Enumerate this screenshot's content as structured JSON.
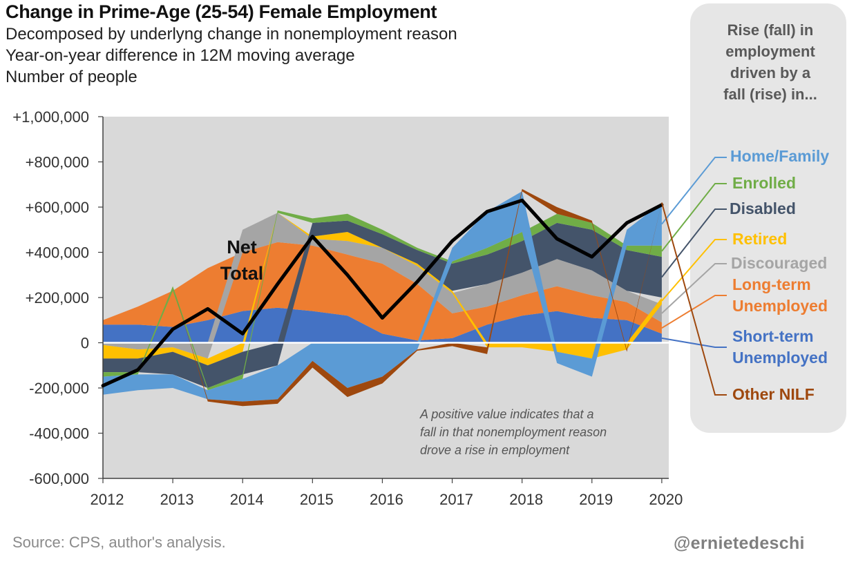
{
  "header": {
    "title": "Change in Prime-Age (25-54) Female Employment",
    "subtitle_lines": [
      "Decomposed by underlyng change in nonemployment reason",
      "Year-on-year difference in 12M moving average",
      "Number of people"
    ]
  },
  "legend_panel": {
    "title_lines": [
      "Rise (fall) in",
      "employment",
      "driven by a",
      "fall (rise) in..."
    ],
    "items": [
      {
        "label": "Home/Family",
        "color": "#5b9bd5"
      },
      {
        "label": "Enrolled",
        "color": "#70ad47"
      },
      {
        "label": "Disabled",
        "color": "#44546a"
      },
      {
        "label": "Retired",
        "color": "#ffc000"
      },
      {
        "label": "Discouraged",
        "color": "#a5a5a5"
      },
      {
        "label": "Long-term Unemployed",
        "label_lines": [
          "Long-term",
          "Unemployed"
        ],
        "color": "#ed7d31"
      },
      {
        "label": "Short-term Unemployed",
        "label_lines": [
          "Short-term",
          "Unemployed"
        ],
        "color": "#4472c4"
      },
      {
        "label": "Other NILF",
        "color": "#9e480e"
      }
    ]
  },
  "footer": {
    "source": "Source: CPS, author's analysis.",
    "handle": "@ernietedeschi"
  },
  "chart_data": {
    "type": "area",
    "stacked": true,
    "title": "Change in Prime-Age (25-54) Female Employment",
    "ylim": [
      -600000,
      1000000
    ],
    "xlim": [
      2012,
      2020.1
    ],
    "y_ticks": [
      1000000,
      800000,
      600000,
      400000,
      200000,
      0,
      -200000,
      -400000,
      -600000
    ],
    "y_tick_labels": [
      "+1,000,000",
      "+800,000",
      "+600,000",
      "+400,000",
      "+200,000",
      "0",
      "-200,000",
      "-400,000",
      "-600,000"
    ],
    "x_ticks": [
      2012,
      2013,
      2014,
      2015,
      2016,
      2017,
      2018,
      2019,
      2020
    ],
    "x_tick_labels": [
      "2012",
      "2013",
      "2014",
      "2015",
      "2016",
      "2017",
      "2018",
      "2019",
      "2020"
    ],
    "grid": false,
    "background": "#d9d9d9",
    "x": [
      2012.0,
      2012.5,
      2013.0,
      2013.5,
      2014.0,
      2014.5,
      2015.0,
      2015.5,
      2016.0,
      2016.5,
      2017.0,
      2017.5,
      2018.0,
      2018.5,
      2019.0,
      2019.5,
      2020.0
    ],
    "series": [
      {
        "name": "Short-term Unemployed",
        "color": "#4472c4",
        "values": [
          80000,
          80000,
          70000,
          100000,
          140000,
          155000,
          140000,
          120000,
          40000,
          10000,
          20000,
          80000,
          120000,
          140000,
          110000,
          100000,
          40000
        ]
      },
      {
        "name": "Long-term Unemployed",
        "color": "#ed7d31",
        "values": [
          20000,
          80000,
          160000,
          230000,
          260000,
          290000,
          290000,
          270000,
          310000,
          250000,
          110000,
          80000,
          90000,
          110000,
          100000,
          80000,
          50000
        ]
      },
      {
        "name": "Discouraged",
        "color": "#a5a5a5",
        "values": [
          -10000,
          -30000,
          -20000,
          -70000,
          100000,
          130000,
          30000,
          60000,
          70000,
          80000,
          90000,
          100000,
          100000,
          120000,
          110000,
          50000,
          80000
        ]
      },
      {
        "name": "Retired",
        "color": "#ffc000",
        "values": [
          -60000,
          -40000,
          -20000,
          -30000,
          -40000,
          0,
          10000,
          40000,
          0,
          10000,
          10000,
          -20000,
          -20000,
          -40000,
          -70000,
          -30000,
          30000
        ]
      },
      {
        "name": "Disabled",
        "color": "#44546a",
        "values": [
          -60000,
          -60000,
          -100000,
          -100000,
          -100000,
          -100000,
          60000,
          50000,
          60000,
          60000,
          120000,
          130000,
          140000,
          160000,
          180000,
          180000,
          180000
        ]
      },
      {
        "name": "Enrolled",
        "color": "#70ad47",
        "values": [
          -20000,
          -10000,
          20000,
          -10000,
          -20000,
          10000,
          20000,
          30000,
          20000,
          10000,
          10000,
          30000,
          40000,
          40000,
          30000,
          20000,
          50000
        ]
      },
      {
        "name": "Home/Family",
        "color": "#5b9bd5",
        "values": [
          -80000,
          -70000,
          -60000,
          -40000,
          -100000,
          -150000,
          -80000,
          -200000,
          -150000,
          -30000,
          60000,
          160000,
          180000,
          -50000,
          -80000,
          70000,
          190000
        ]
      },
      {
        "name": "Other NILF",
        "color": "#9e480e",
        "values": [
          0,
          0,
          0,
          -10000,
          -20000,
          -20000,
          -30000,
          -40000,
          -30000,
          -5000,
          -15000,
          -30000,
          10000,
          30000,
          10000,
          -10000,
          0
        ]
      }
    ],
    "net_total": {
      "name": "Net Total",
      "color": "#000000",
      "values": [
        -190000,
        -120000,
        60000,
        150000,
        40000,
        260000,
        470000,
        300000,
        110000,
        270000,
        450000,
        580000,
        630000,
        460000,
        380000,
        530000,
        610000
      ]
    },
    "annotations": {
      "net_total_label_lines": [
        "Net",
        "Total"
      ],
      "note_lines": [
        "A positive value indicates that a",
        "fall in that nonemployment reason",
        "drove a rise in employment"
      ]
    }
  }
}
